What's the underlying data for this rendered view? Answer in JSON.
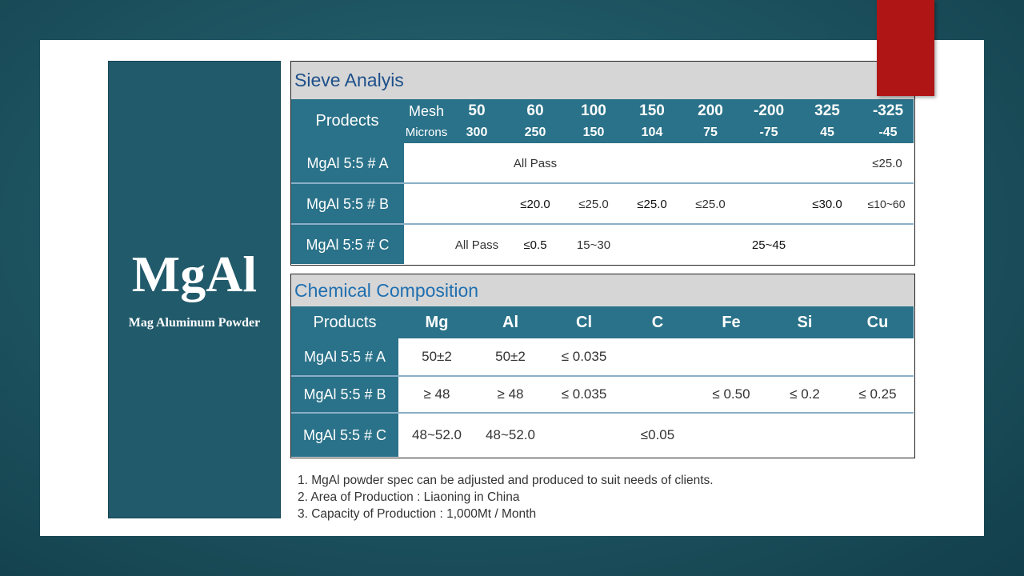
{
  "brand": {
    "title": "MgAl",
    "subtitle": "Mag Aluminum Powder"
  },
  "sieve": {
    "title": "Sieve  Analyis",
    "header_label": "Prodects",
    "mesh_label": "Mesh",
    "microns_label": "Microns",
    "mesh": [
      "50",
      "60",
      "100",
      "150",
      "200",
      "-200",
      "325",
      "-325"
    ],
    "microns": [
      "300",
      "250",
      "150",
      "104",
      "75",
      "-75",
      "45",
      "-45"
    ],
    "rows": [
      {
        "label": "MgAl 5:5 # A",
        "v1": "All Pass",
        "v2": "≤25.0"
      },
      {
        "label": "MgAl 5:5 # B",
        "v1": "≤20.0",
        "v2": "≤25.0",
        "v3": "≤25.0",
        "v4": "≤25.0",
        "v5": "≤30.0",
        "v6": "≤10~60"
      },
      {
        "label": "MgAl 5:5 # C",
        "v1": "All Pass",
        "v2": "≤0.5",
        "v3": "15~30",
        "v4": "25~45"
      }
    ]
  },
  "chem": {
    "title": "Chemical  Composition",
    "columns": [
      "Products",
      "Mg",
      "Al",
      "Cl",
      "C",
      "Fe",
      "Si",
      "Cu"
    ],
    "rows": [
      {
        "label": "MgAl 5:5 # A",
        "mg": "50±2",
        "al": "50±2",
        "cl": "≤ 0.035"
      },
      {
        "label": "MgAl 5:5 # B",
        "mg": "≥ 48",
        "al": "≥ 48",
        "cl": "≤ 0.035",
        "fe": "≤ 0.50",
        "si": "≤ 0.2",
        "cu": "≤ 0.25"
      },
      {
        "label": "MgAl 5:5 # C",
        "mg": "48~52.0",
        "al": "48~52.0",
        "c": "≤0.05"
      }
    ]
  },
  "notes": [
    "1.  MgAl powder spec can be adjusted and produced to suit needs of clients.",
    "2.  Area of Production : Liaoning in China",
    "3.  Capacity of Production  : 1,000Mt / Month"
  ],
  "colors": {
    "teal": "#2a7289",
    "panel": "#215a6b",
    "accent_red": "#b01515",
    "title_blue": "#1e4f8a"
  }
}
